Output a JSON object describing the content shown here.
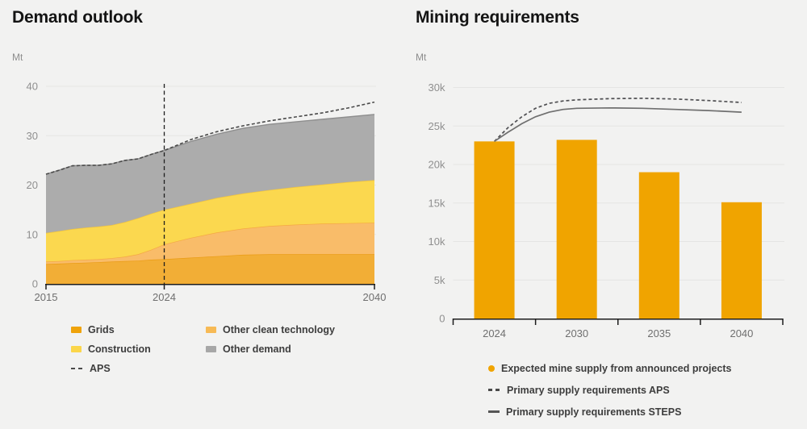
{
  "page": {
    "background": "#f2f2f1"
  },
  "chart_data": [
    {
      "type": "area",
      "title": "Demand outlook",
      "unit": "Mt",
      "xlim": [
        2015,
        2040
      ],
      "ylim": [
        0,
        40
      ],
      "grid": true,
      "x_ticks": [
        {
          "label": "2015",
          "year": 2015
        },
        {
          "label": "2024",
          "year": 2024
        },
        {
          "label": "2040",
          "year": 2040
        }
      ],
      "y_ticks": [
        {
          "label": "0",
          "value": 0
        },
        {
          "label": "10",
          "value": 10
        },
        {
          "label": "20",
          "value": 20
        },
        {
          "label": "30",
          "value": 30
        },
        {
          "label": "40",
          "value": 40
        }
      ],
      "highlight_year": 2024,
      "years": [
        2015,
        2016,
        2017,
        2018,
        2019,
        2020,
        2021,
        2022,
        2023,
        2024,
        2026,
        2028,
        2030,
        2032,
        2034,
        2036,
        2038,
        2040
      ],
      "series": [
        {
          "name": "Grids",
          "color": "#f2ae36",
          "edge": "#ea9c15",
          "values": [
            4.0,
            4.1,
            4.2,
            4.3,
            4.4,
            4.5,
            4.6,
            4.7,
            4.9,
            5.0,
            5.3,
            5.6,
            5.9,
            6.0,
            6.0,
            6.0,
            6.0,
            6.0
          ]
        },
        {
          "name": "Other clean technology",
          "color": "#f9bc69",
          "edge": "#f5a843",
          "values": [
            0.5,
            0.5,
            0.6,
            0.6,
            0.6,
            0.7,
            0.9,
            1.3,
            2.0,
            3.0,
            4.0,
            4.8,
            5.3,
            5.7,
            6.0,
            6.2,
            6.3,
            6.4
          ]
        },
        {
          "name": "Construction",
          "color": "#fbd84f",
          "edge": "#f2c43c",
          "values": [
            5.8,
            6.1,
            6.3,
            6.5,
            6.6,
            6.7,
            7.0,
            7.3,
            7.3,
            7.0,
            6.9,
            7.0,
            7.1,
            7.3,
            7.6,
            7.9,
            8.3,
            8.6
          ]
        },
        {
          "name": "Other demand",
          "color": "#acacac",
          "edge": "#8e8e8e",
          "values": [
            11.9,
            12.3,
            12.8,
            12.6,
            12.4,
            12.4,
            12.5,
            12.0,
            12.0,
            12.0,
            12.6,
            12.9,
            13.2,
            13.3,
            13.2,
            13.2,
            13.2,
            13.3
          ]
        }
      ],
      "aps_line": {
        "name": "APS",
        "color": "#4a4a4a",
        "style": "dashed",
        "values": [
          22.2,
          23.0,
          23.9,
          24.0,
          24.0,
          24.3,
          25.0,
          25.3,
          26.2,
          27.0,
          29.2,
          30.8,
          32.0,
          33.0,
          33.8,
          34.6,
          35.6,
          36.8
        ]
      },
      "legend": [
        {
          "swatch": "rect",
          "color": "#efa30b",
          "label": "Grids"
        },
        {
          "swatch": "rect",
          "color": "#f7ba55",
          "label": "Other clean technology"
        },
        {
          "swatch": "rect",
          "color": "#fbd64a",
          "label": "Construction"
        },
        {
          "swatch": "rect",
          "color": "#a7a7a7",
          "label": "Other demand"
        },
        {
          "swatch": "dashed",
          "color": "#4a4a4a",
          "label": "APS"
        }
      ]
    },
    {
      "type": "bar",
      "title": "Mining requirements",
      "unit": "Mt",
      "ylim": [
        0,
        30000
      ],
      "grid": true,
      "categories": [
        "2024",
        "2030",
        "2035",
        "2040"
      ],
      "category_years": [
        2024,
        2030,
        2035,
        2040
      ],
      "bar_series": {
        "name": "Expected mine supply from announced projects",
        "color": "#f0a400",
        "values": [
          23000,
          23200,
          19000,
          15100
        ]
      },
      "y_ticks": [
        {
          "label": "0",
          "value": 0
        },
        {
          "label": "5k",
          "value": 5000
        },
        {
          "label": "10k",
          "value": 10000
        },
        {
          "label": "15k",
          "value": 15000
        },
        {
          "label": "20k",
          "value": 20000
        },
        {
          "label": "25k",
          "value": 25000
        },
        {
          "label": "30k",
          "value": 30000
        }
      ],
      "lines": [
        {
          "name": "Primary supply requirements APS",
          "style": "dashed",
          "color": "#4f4f52",
          "years": [
            2024,
            2025,
            2026,
            2027,
            2028,
            2029,
            2030,
            2032,
            2034,
            2036,
            2038,
            2040
          ],
          "values": [
            23000,
            24800,
            26200,
            27300,
            27950,
            28250,
            28400,
            28550,
            28600,
            28500,
            28300,
            28050
          ]
        },
        {
          "name": "Primary supply requirements STEPS",
          "style": "solid",
          "color": "#6f6f6f",
          "years": [
            2024,
            2025,
            2026,
            2027,
            2028,
            2029,
            2030,
            2032,
            2034,
            2036,
            2038,
            2040
          ],
          "values": [
            23000,
            24200,
            25300,
            26200,
            26800,
            27150,
            27300,
            27350,
            27300,
            27150,
            27000,
            26800
          ]
        }
      ],
      "legend": [
        {
          "swatch": "dot",
          "color": "#f0a400",
          "label": "Expected mine supply from announced projects"
        },
        {
          "swatch": "dashed",
          "color": "#4a4a4a",
          "label": "Primary supply requirements APS"
        },
        {
          "swatch": "solid",
          "color": "#555555",
          "label": "Primary supply requirements STEPS"
        }
      ]
    }
  ]
}
